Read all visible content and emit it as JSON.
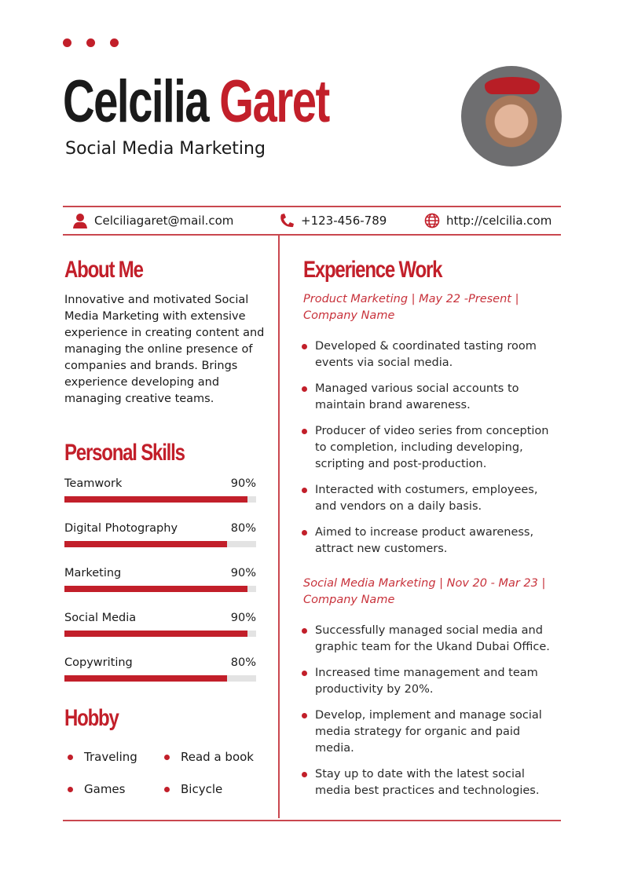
{
  "header": {
    "first_name": "Celcilia",
    "last_name": "Garet",
    "role": "Social Media Marketing"
  },
  "colors": {
    "accent": "#c21f2a"
  },
  "contact": {
    "email": "Celciliagaret@mail.com",
    "phone": "+123-456-789",
    "website": "http://celcilia.com",
    "icons": [
      "person-icon",
      "phone-icon",
      "globe-icon"
    ]
  },
  "about": {
    "title": "About Me",
    "text": "Innovative and motivated Social Media Marketing with extensive experience in creating content and managing the online presence of companies and brands. Brings experience developing and managing creative teams."
  },
  "skills": {
    "title": "Personal Skills",
    "items": [
      {
        "label": "Teamwork",
        "percent": "90%",
        "value": 90
      },
      {
        "label": "Digital Photography",
        "percent": "80%",
        "value": 80
      },
      {
        "label": "Marketing",
        "percent": "90%",
        "value": 90
      },
      {
        "label": "Social Media",
        "percent": "90%",
        "value": 90
      },
      {
        "label": "Copywriting",
        "percent": "80%",
        "value": 80
      }
    ]
  },
  "hobby": {
    "title": "Hobby",
    "items": [
      "Traveling",
      "Read a book",
      "Games",
      "Bicycle"
    ]
  },
  "experience": {
    "title": "Experience Work",
    "jobs": [
      {
        "heading": "Product Marketing | May 22 -Present | Company Name",
        "bullets": [
          "Developed & coordinated tasting room events via social media.",
          "Managed various social accounts to maintain brand awareness.",
          "Producer of video series from conception to completion, including developing, scripting and post-production.",
          "Interacted with costumers, employees, and vendors on a daily basis.",
          "Aimed to increase product awareness, attract new customers."
        ]
      },
      {
        "heading": "Social Media Marketing | Nov 20 - Mar 23 | Company Name",
        "bullets": [
          "Successfully managed social media and graphic team for the Ukand Dubai Office.",
          "Increased time management and team productivity by 20%.",
          "Develop, implement and manage social media strategy for organic and paid media.",
          "Stay up to date with the latest social media best practices and technologies."
        ]
      }
    ]
  }
}
